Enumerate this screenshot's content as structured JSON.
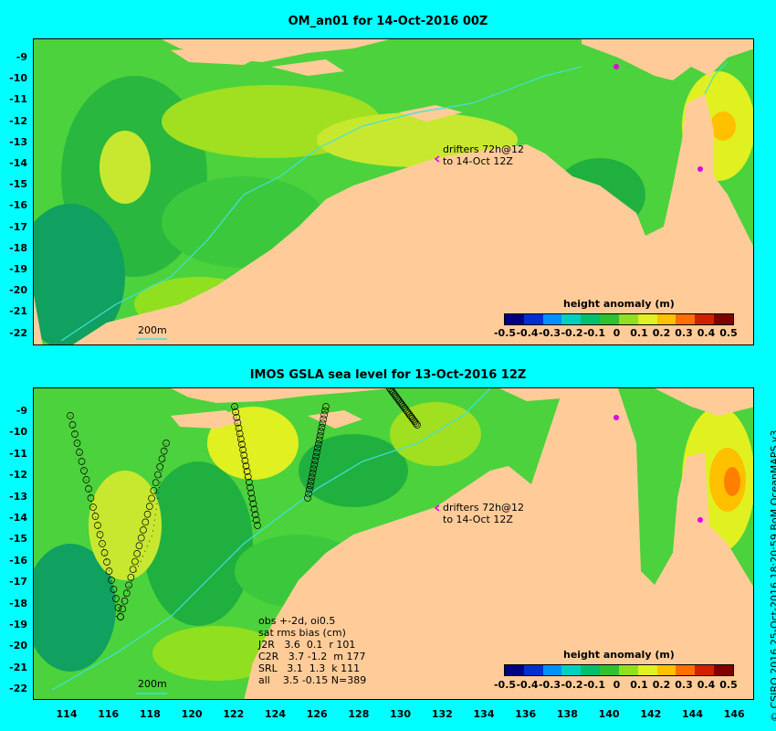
{
  "panels": [
    {
      "title": "OM_an01 for 14-Oct-2016 00Z",
      "drifter_label_1": "drifters 72h@12",
      "drifter_label_2": "to 14-Oct 12Z",
      "scale_label": "200m",
      "legend_title": "height anomaly (m)"
    },
    {
      "title": "IMOS GSLA sea level  for 13-Oct-2016 12Z",
      "drifter_label_1": "drifters 72h@12",
      "drifter_label_2": "to 14-Oct 12Z",
      "scale_label": "200m",
      "legend_title": "height anomaly (m)",
      "obs_lines": [
        "obs +-2d, oi0.5",
        "sat rms bias (cm)",
        "J2R   3.6  0.1  r 101",
        "C2R   3.7 -1.2  m 177",
        "SRL   3.1  1.3  k 111",
        "all    3.5 -0.15 N=389"
      ]
    }
  ],
  "y_ticks": [
    "-9",
    "-10",
    "-11",
    "-12",
    "-13",
    "-14",
    "-15",
    "-16",
    "-17",
    "-18",
    "-19",
    "-20",
    "-21",
    "-22"
  ],
  "x_ticks": [
    "114",
    "116",
    "118",
    "120",
    "122",
    "124",
    "126",
    "128",
    "130",
    "132",
    "134",
    "136",
    "138",
    "140",
    "142",
    "144",
    "146"
  ],
  "colorbar_ticks": [
    "-0.5",
    "-0.4",
    "-0.3",
    "-0.2",
    "-0.1",
    "0",
    "0.1",
    "0.2",
    "0.3",
    "0.4",
    "0.5"
  ],
  "colorbar_colors": [
    "#000080",
    "#0030d0",
    "#0090ff",
    "#00d0c0",
    "#00c070",
    "#30c030",
    "#90e020",
    "#e0f020",
    "#ffc000",
    "#ff7000",
    "#d02000",
    "#800000"
  ],
  "credit": "© CSIRO 2016  25-Oct-2016 18:20:59 BoM OceanMAPS v3",
  "colors": {
    "background": "#00ffff",
    "land": "#ffcc99",
    "ocean": "#4cd23c"
  }
}
